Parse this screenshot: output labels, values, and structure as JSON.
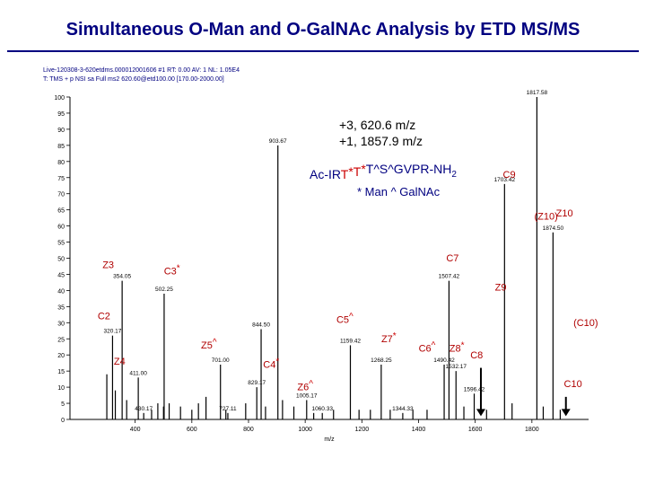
{
  "slide": {
    "title": "Simultaneous O-Man and O-GalNAc Analysis by ETD MS/MS"
  },
  "instrument_header": {
    "line1": "Live-120308-3-620etdms.000012001606    #1   RT: 0.00   AV: 1   NL: 1.05E4",
    "line2": "T: TMS + p NSI sa Full ms2 620.60@etd100.00 [170.00-2000.00]"
  },
  "colors": {
    "title": "#000080",
    "peaks": "#000000",
    "fragment_labels": "#b00000",
    "glycan_marker": "#cc0000",
    "info_text": "#000080",
    "arrow": "#000000"
  },
  "chart_data": {
    "type": "bar",
    "xlabel": "m/z",
    "xlim": [
      170,
      2000
    ],
    "ylim": [
      0,
      100
    ],
    "x_ticks": [
      400,
      600,
      800,
      1000,
      1200,
      1400,
      1600,
      1800
    ],
    "y_ticks": [
      0,
      5,
      10,
      15,
      20,
      25,
      30,
      35,
      40,
      45,
      50,
      55,
      60,
      65,
      70,
      75,
      80,
      85,
      90,
      95,
      100
    ],
    "info": {
      "precursor_lines": [
        "+3, 620.6 m/z",
        "+1, 1857.9 m/z"
      ],
      "sequence_parts": [
        {
          "text": "Ac-IR",
          "marker": "",
          "color": "#000080"
        },
        {
          "text": "T",
          "marker": "",
          "color": "#cc0000"
        },
        {
          "text": "",
          "marker": "*",
          "color": "#cc0000"
        },
        {
          "text": "T",
          "marker": "",
          "color": "#cc0000"
        },
        {
          "text": "",
          "marker": "*",
          "color": "#cc0000"
        },
        {
          "text": "T^S^GVPR-NH",
          "marker": "",
          "color": "#000080"
        },
        {
          "text": "2",
          "marker": "",
          "color": "#000080",
          "sub": true
        }
      ],
      "legend_parts": [
        {
          "text": "* Man  ^ GalNAc",
          "color": "#000080"
        }
      ]
    },
    "peaks": [
      {
        "mz": 300,
        "intensity": 14
      },
      {
        "mz": 320.17,
        "intensity": 26,
        "label": "320.17"
      },
      {
        "mz": 330,
        "intensity": 9
      },
      {
        "mz": 354.05,
        "intensity": 43,
        "label": "354.05"
      },
      {
        "mz": 370,
        "intensity": 6
      },
      {
        "mz": 411.0,
        "intensity": 13,
        "label": "411.00"
      },
      {
        "mz": 430.17,
        "intensity": 2,
        "label": "430.17"
      },
      {
        "mz": 458.0,
        "intensity": 3
      },
      {
        "mz": 480,
        "intensity": 5
      },
      {
        "mz": 500,
        "intensity": 4
      },
      {
        "mz": 502.25,
        "intensity": 39,
        "label": "502.25"
      },
      {
        "mz": 520,
        "intensity": 5
      },
      {
        "mz": 560,
        "intensity": 4
      },
      {
        "mz": 600,
        "intensity": 3
      },
      {
        "mz": 623.25,
        "intensity": 5
      },
      {
        "mz": 650,
        "intensity": 7
      },
      {
        "mz": 701.0,
        "intensity": 17,
        "label": "701.00"
      },
      {
        "mz": 720,
        "intensity": 3
      },
      {
        "mz": 727.1,
        "intensity": 2,
        "label": "727.11"
      },
      {
        "mz": 790,
        "intensity": 5
      },
      {
        "mz": 829.17,
        "intensity": 10,
        "label": "829.17"
      },
      {
        "mz": 844.5,
        "intensity": 28,
        "label": "844.50"
      },
      {
        "mz": 860,
        "intensity": 4
      },
      {
        "mz": 903.67,
        "intensity": 85,
        "label": "903.67"
      },
      {
        "mz": 920,
        "intensity": 6
      },
      {
        "mz": 960,
        "intensity": 4
      },
      {
        "mz": 1005.17,
        "intensity": 6,
        "label": "1005.17"
      },
      {
        "mz": 1030,
        "intensity": 2
      },
      {
        "mz": 1060.33,
        "intensity": 2,
        "label": "1060.33"
      },
      {
        "mz": 1100,
        "intensity": 3
      },
      {
        "mz": 1159.42,
        "intensity": 23,
        "label": "1159.42"
      },
      {
        "mz": 1190,
        "intensity": 3
      },
      {
        "mz": 1230,
        "intensity": 3
      },
      {
        "mz": 1268.25,
        "intensity": 17,
        "label": "1268.25"
      },
      {
        "mz": 1300,
        "intensity": 3
      },
      {
        "mz": 1344.33,
        "intensity": 2,
        "label": "1344.33"
      },
      {
        "mz": 1380,
        "intensity": 3
      },
      {
        "mz": 1430,
        "intensity": 3
      },
      {
        "mz": 1490.42,
        "intensity": 17,
        "label": "1490.42"
      },
      {
        "mz": 1507.42,
        "intensity": 43,
        "label": "1507.42"
      },
      {
        "mz": 1532.17,
        "intensity": 15,
        "label": "1532.17"
      },
      {
        "mz": 1560,
        "intensity": 4
      },
      {
        "mz": 1596.42,
        "intensity": 8,
        "label": "1596.42"
      },
      {
        "mz": 1640,
        "intensity": 3
      },
      {
        "mz": 1703.42,
        "intensity": 73,
        "label": "1703.42"
      },
      {
        "mz": 1730,
        "intensity": 5
      },
      {
        "mz": 1817.58,
        "intensity": 100,
        "label": "1817.58"
      },
      {
        "mz": 1840,
        "intensity": 4
      },
      {
        "mz": 1874.5,
        "intensity": 58,
        "label": "1874.50"
      },
      {
        "mz": 1900,
        "intensity": 3
      }
    ],
    "fragment_annotations": [
      {
        "name": "Z3",
        "mz": 305,
        "y": 47,
        "marker": ""
      },
      {
        "name": "C3",
        "mz": 530,
        "y": 45,
        "marker": "*"
      },
      {
        "name": "C2",
        "mz": 290,
        "y": 31,
        "marker": ""
      },
      {
        "name": "Z4",
        "mz": 345,
        "y": 17,
        "marker": ""
      },
      {
        "name": "Z5",
        "mz": 660,
        "y": 22,
        "marker": "^"
      },
      {
        "name": "C4",
        "mz": 880,
        "y": 16,
        "marker": "*"
      },
      {
        "name": "Z6",
        "mz": 1000,
        "y": 9,
        "marker": "^"
      },
      {
        "name": "C5",
        "mz": 1140,
        "y": 30,
        "marker": "^"
      },
      {
        "name": "Z7",
        "mz": 1295,
        "y": 24,
        "marker": "*"
      },
      {
        "name": "C6",
        "mz": 1430,
        "y": 21,
        "marker": "^"
      },
      {
        "name": "Z8",
        "mz": 1535,
        "y": 21,
        "marker": "*"
      },
      {
        "name": "C8",
        "mz": 1605,
        "y": 19,
        "marker": ""
      },
      {
        "name": "C7",
        "mz": 1520,
        "y": 49,
        "marker": ""
      },
      {
        "name": "Z9",
        "mz": 1690,
        "y": 40,
        "marker": ""
      },
      {
        "name": "C9",
        "mz": 1720,
        "y": 75,
        "marker": ""
      },
      {
        "name": "(Z10)",
        "mz": 1850,
        "y": 62,
        "marker": ""
      },
      {
        "name": "Z10",
        "mz": 1915,
        "y": 63,
        "marker": ""
      },
      {
        "name": "(C10)",
        "mz": 1990,
        "y": 29,
        "marker": ""
      },
      {
        "name": "C10",
        "mz": 1945,
        "y": 10,
        "marker": ""
      }
    ],
    "arrows": [
      {
        "target_mz": 1620,
        "from_y": 16,
        "to_y": 1
      },
      {
        "target_mz": 1920,
        "from_y": 7,
        "to_y": 1
      }
    ]
  }
}
